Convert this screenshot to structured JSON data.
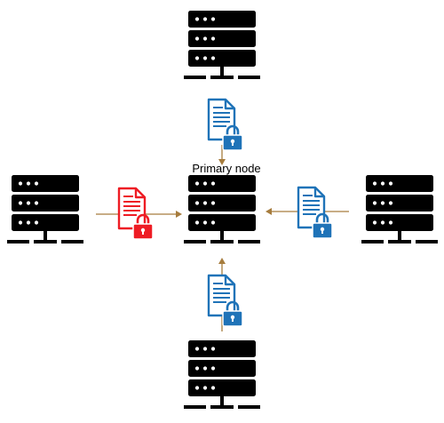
{
  "diagram": {
    "primary_label": "Primary node",
    "colors": {
      "server": "#000000",
      "arrow": "#a67c3d",
      "doc_blue": "#1f73b8",
      "doc_red": "#ee1c24",
      "background": "#ffffff"
    },
    "nodes": [
      {
        "name": "server-top",
        "role": "peer"
      },
      {
        "name": "server-left",
        "role": "peer"
      },
      {
        "name": "server-center",
        "role": "primary"
      },
      {
        "name": "server-right",
        "role": "peer"
      },
      {
        "name": "server-bottom",
        "role": "peer"
      }
    ],
    "transfers": [
      {
        "name": "top",
        "from": "server-top",
        "to": "server-center",
        "icon": "locked-document-icon",
        "color": "blue"
      },
      {
        "name": "left",
        "from": "server-left",
        "to": "server-center",
        "icon": "locked-document-icon",
        "color": "red"
      },
      {
        "name": "right",
        "from": "server-right",
        "to": "server-center",
        "icon": "locked-document-icon",
        "color": "blue"
      },
      {
        "name": "bottom",
        "from": "server-bottom",
        "to": "server-center",
        "icon": "locked-document-icon",
        "color": "blue"
      }
    ]
  }
}
